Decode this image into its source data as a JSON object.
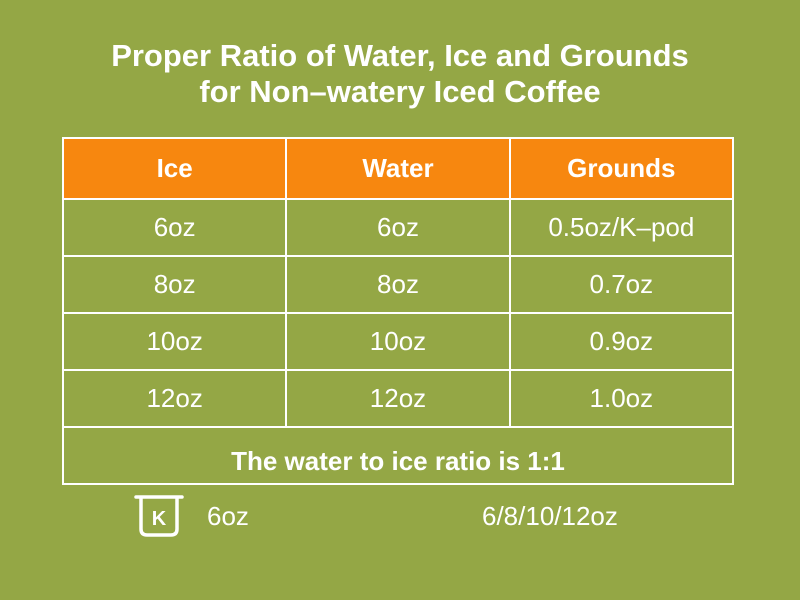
{
  "title": {
    "line1": "Proper Ratio of Water, Ice and Grounds",
    "line2": "for Non–watery Iced Coffee"
  },
  "table": {
    "headers": [
      "Ice",
      "Water",
      "Grounds"
    ],
    "rows": [
      [
        "6oz",
        "6oz",
        "0.5oz/K–pod"
      ],
      [
        "8oz",
        "8oz",
        "0.7oz"
      ],
      [
        "10oz",
        "10oz",
        "0.9oz"
      ],
      [
        "12oz",
        "12oz",
        "1.0oz"
      ]
    ],
    "header_color": "#f7870f",
    "border_color": "#ffffff"
  },
  "footer": {
    "ratio_text": "The water to ice ratio is 1:1",
    "icon": "k-pod-cup-icon",
    "icon_letter": "K",
    "kpod_size": "6oz",
    "cup_sizes": "6/8/10/12oz"
  },
  "colors": {
    "background": "#94a745",
    "header": "#f7870f",
    "text": "#ffffff"
  }
}
